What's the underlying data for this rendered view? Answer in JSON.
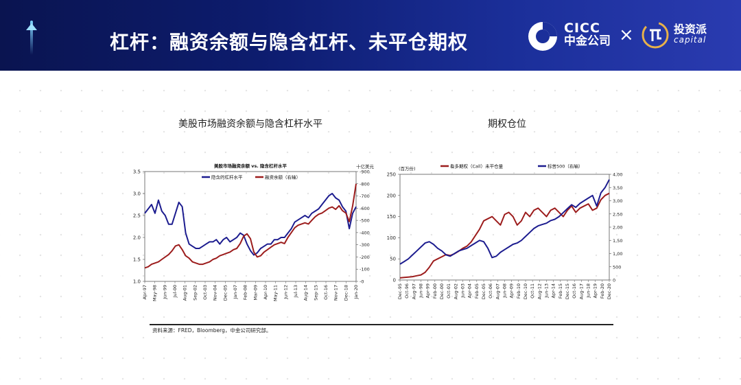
{
  "header": {
    "title": "杠杆：融资余额与隐含杠杆、未平仓期权",
    "logo_cicc_en": "CICC",
    "logo_cicc_zh": "中金公司",
    "logo_sep": "×",
    "logo_tzp_zh": "投资派",
    "logo_tzp_en": "capital"
  },
  "colors": {
    "blue": "#1c1c8f",
    "red": "#9c1c1c",
    "header_dark": "#0a1450",
    "header_light": "#2a3bb0"
  },
  "source_note": "资料来源：FRED，Bloomberg，中金公司研究部。",
  "chart_data": [
    {
      "type": "line",
      "section_title": "美股市场融资余额与隐含杠杆水平",
      "title": "美股市场融资余额  vs. 隐含杠杆水平",
      "y2_unit": "十亿美元",
      "ylim": [
        1.0,
        3.5
      ],
      "y_ticks": [
        "1.0",
        "1.5",
        "2.0",
        "2.5",
        "3.0",
        "3.5"
      ],
      "y2lim": [
        0,
        900
      ],
      "y2_ticks": [
        "0",
        "100",
        "200",
        "300",
        "400",
        "500",
        "600",
        "700",
        "800",
        "900"
      ],
      "x_ticks": [
        "Apr-97",
        "May-98",
        "Jun-99",
        "Jul-00",
        "Aug-01",
        "Sep-02",
        "Oct-03",
        "Nov-04",
        "Dec-05",
        "Jan-07",
        "Feb-08",
        "Mar-09",
        "Apr-10",
        "May-11",
        "Jun-12",
        "Jul-13",
        "Aug-14",
        "Sep-15",
        "Oct-16",
        "Nov-17",
        "Dec-18",
        "Jan-20"
      ],
      "series": [
        {
          "name": "隐含的杠杆水平",
          "axis": "left",
          "color": "#1c1c8f",
          "values": [
            2.55,
            2.65,
            2.75,
            2.55,
            2.85,
            2.6,
            2.5,
            2.3,
            2.3,
            2.55,
            2.8,
            2.7,
            2.1,
            1.85,
            1.8,
            1.75,
            1.75,
            1.8,
            1.85,
            1.9,
            1.9,
            1.95,
            1.85,
            1.95,
            2.0,
            1.9,
            1.95,
            2.0,
            2.1,
            2.05,
            1.85,
            1.7,
            1.6,
            1.65,
            1.75,
            1.8,
            1.85,
            1.85,
            1.95,
            1.95,
            2.0,
            2.0,
            2.1,
            2.2,
            2.35,
            2.4,
            2.45,
            2.5,
            2.45,
            2.55,
            2.6,
            2.65,
            2.75,
            2.85,
            2.95,
            3.0,
            2.9,
            2.85,
            2.7,
            2.6,
            2.2,
            2.55,
            2.7
          ]
        },
        {
          "name": "融资余额（右轴）",
          "axis": "right",
          "color": "#9c1c1c",
          "values": [
            110,
            120,
            140,
            150,
            160,
            180,
            200,
            220,
            250,
            290,
            300,
            260,
            210,
            190,
            160,
            150,
            140,
            140,
            150,
            160,
            180,
            190,
            210,
            220,
            230,
            240,
            260,
            270,
            310,
            370,
            390,
            350,
            240,
            200,
            210,
            240,
            260,
            280,
            300,
            310,
            320,
            310,
            360,
            400,
            440,
            460,
            470,
            480,
            470,
            500,
            530,
            550,
            560,
            580,
            600,
            610,
            590,
            620,
            580,
            560,
            490,
            620,
            800
          ]
        }
      ]
    },
    {
      "type": "line",
      "section_title": "期权仓位",
      "y_unit": "百万份",
      "ylim": [
        0,
        250
      ],
      "y_ticks": [
        "0",
        "50",
        "100",
        "150",
        "200",
        "250"
      ],
      "y2lim": [
        0,
        4000
      ],
      "y2_ticks": [
        "0",
        "500",
        "1,000",
        "1,500",
        "2,000",
        "2,500",
        "3,000",
        "3,500",
        "4,000"
      ],
      "x_ticks": [
        "Dec-95",
        "Oct-96",
        "Aug-97",
        "Jun-98",
        "Apr-99",
        "Feb-00",
        "Dec-00",
        "Oct-01",
        "Aug-02",
        "Jun-03",
        "Apr-04",
        "Feb-05",
        "Dec-05",
        "Oct-06",
        "Aug-07",
        "Jun-08",
        "Apr-09",
        "Feb-10",
        "Dec-10",
        "Oct-11",
        "Aug-12",
        "Jun-13",
        "Apr-14",
        "Feb-15",
        "Dec-15",
        "Oct-16",
        "Aug-17",
        "Jun-18",
        "Apr-19",
        "Feb-20",
        "Dec-20"
      ],
      "series": [
        {
          "name": "看多期权（Call）未平仓量",
          "axis": "left",
          "color": "#9c1c1c",
          "values": [
            5,
            6,
            7,
            8,
            10,
            12,
            18,
            30,
            45,
            50,
            55,
            60,
            58,
            62,
            68,
            75,
            80,
            90,
            105,
            120,
            140,
            145,
            150,
            140,
            130,
            155,
            160,
            150,
            130,
            140,
            160,
            150,
            165,
            170,
            160,
            150,
            165,
            170,
            160,
            150,
            165,
            175,
            160,
            170,
            175,
            180,
            165,
            170,
            190,
            200,
            205
          ]
        },
        {
          "name": "标普500（右轴）",
          "axis": "right",
          "color": "#1c1c8f",
          "values": [
            600,
            700,
            800,
            950,
            1100,
            1250,
            1400,
            1450,
            1350,
            1200,
            1100,
            950,
            900,
            1000,
            1100,
            1150,
            1200,
            1300,
            1400,
            1500,
            1450,
            1200,
            850,
            900,
            1050,
            1150,
            1250,
            1350,
            1400,
            1500,
            1650,
            1800,
            1950,
            2050,
            2100,
            2150,
            2250,
            2300,
            2400,
            2550,
            2700,
            2850,
            2750,
            2900,
            3000,
            3100,
            3200,
            2800,
            3300,
            3500,
            3800
          ]
        }
      ]
    }
  ]
}
